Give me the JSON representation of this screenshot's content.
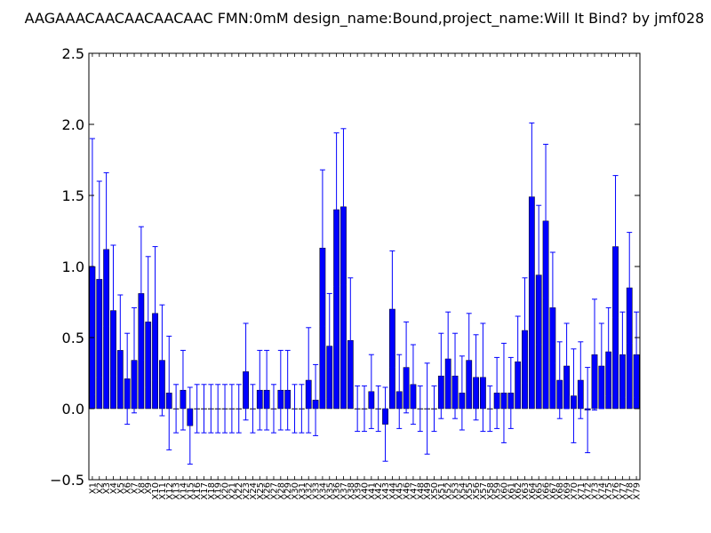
{
  "chart_data": {
    "type": "bar",
    "title": "AAGAAACAACAACAACAAC  FMN:0mM  design_name:Bound,project_name:Will It Bind? by jmf028",
    "xlabel": "",
    "ylabel": "",
    "ylim": [
      -0.5,
      2.5
    ],
    "yticks": [
      "−0.5",
      "0.0",
      "0.5",
      "1.0",
      "1.5",
      "2.0",
      "2.5"
    ],
    "ytick_values": [
      -0.5,
      0.0,
      0.5,
      1.0,
      1.5,
      2.0,
      2.5
    ],
    "grid": false,
    "colors": {
      "bar": "#0000ff",
      "bar_edge": "#000000",
      "error": "#0000ff"
    },
    "categories": [
      "X1",
      "X2",
      "X3",
      "X4",
      "X5",
      "X6",
      "X7",
      "X8",
      "X9",
      "X10",
      "X11",
      "X12",
      "X13",
      "X14",
      "X15",
      "X16",
      "X17",
      "X18",
      "X19",
      "X20",
      "X21",
      "X22",
      "X23",
      "X24",
      "X25",
      "X26",
      "X27",
      "X28",
      "X29",
      "X30",
      "X31",
      "X32",
      "X33",
      "X34",
      "X35",
      "X36",
      "X37",
      "X38",
      "X39",
      "X40",
      "X41",
      "X42",
      "X43",
      "X44",
      "X45",
      "X46",
      "X47",
      "X48",
      "X49",
      "X50",
      "X51",
      "X52",
      "X53",
      "X54",
      "X55",
      "X56",
      "X57",
      "X58",
      "X59",
      "X60",
      "X61",
      "X62",
      "X63",
      "X64",
      "X65",
      "X66",
      "X67",
      "X68",
      "X69",
      "X70",
      "X71",
      "X72",
      "X73",
      "X74",
      "X75",
      "X76",
      "X77",
      "X78",
      "X79"
    ],
    "values": [
      1.0,
      0.91,
      1.12,
      0.69,
      0.41,
      0.21,
      0.34,
      0.81,
      0.61,
      0.67,
      0.34,
      0.11,
      0.0,
      0.13,
      -0.12,
      0.0,
      0.0,
      0.0,
      0.0,
      0.0,
      0.0,
      0.0,
      0.26,
      0.0,
      0.13,
      0.13,
      0.0,
      0.13,
      0.13,
      0.0,
      0.0,
      0.2,
      0.06,
      1.13,
      0.44,
      1.4,
      1.42,
      0.48,
      0.0,
      0.0,
      0.12,
      0.0,
      -0.11,
      0.7,
      0.12,
      0.29,
      0.17,
      0.0,
      0.0,
      0.0,
      0.23,
      0.35,
      0.23,
      0.11,
      0.34,
      0.22,
      0.22,
      0.0,
      0.11,
      0.11,
      0.11,
      0.33,
      0.55,
      1.49,
      0.94,
      1.32,
      0.71,
      0.2,
      0.3,
      0.09,
      0.2,
      -0.01,
      0.38,
      0.3,
      0.4,
      1.14,
      0.38,
      0.85,
      0.38
    ],
    "errors": [
      0.9,
      0.69,
      0.54,
      0.46,
      0.39,
      0.32,
      0.37,
      0.47,
      0.46,
      0.47,
      0.39,
      0.4,
      0.17,
      0.28,
      0.27,
      0.17,
      0.17,
      0.17,
      0.17,
      0.17,
      0.17,
      0.17,
      0.34,
      0.17,
      0.28,
      0.28,
      0.17,
      0.28,
      0.28,
      0.17,
      0.17,
      0.37,
      0.25,
      0.55,
      0.37,
      0.54,
      0.55,
      0.44,
      0.16,
      0.16,
      0.26,
      0.16,
      0.26,
      0.41,
      0.26,
      0.32,
      0.28,
      0.16,
      0.32,
      0.16,
      0.3,
      0.33,
      0.3,
      0.26,
      0.33,
      0.3,
      0.38,
      0.16,
      0.25,
      0.35,
      0.25,
      0.32,
      0.37,
      0.52,
      0.49,
      0.54,
      0.39,
      0.27,
      0.3,
      0.33,
      0.27,
      0.3,
      0.39,
      0.3,
      0.31,
      0.5,
      0.3,
      0.39,
      0.3
    ]
  }
}
